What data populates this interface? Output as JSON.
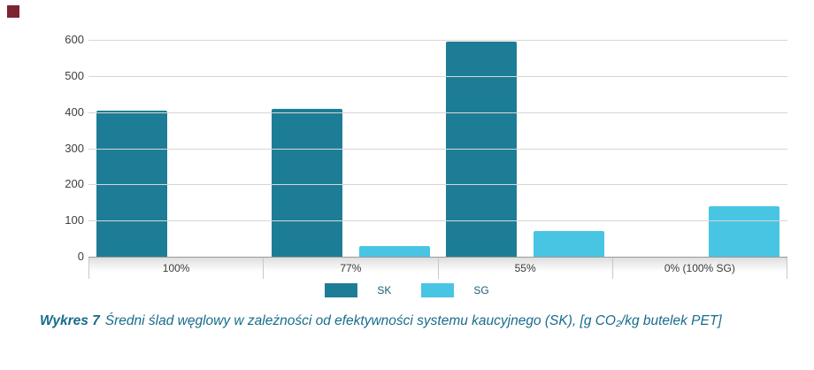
{
  "accent_square_color": "#7d2332",
  "chart_data": {
    "type": "bar",
    "title": "",
    "categories": [
      "100%",
      "77%",
      "55%",
      "0% (100% SG)"
    ],
    "series": [
      {
        "name": "SK",
        "color": "#1e7d96",
        "values": [
          405,
          410,
          595,
          0
        ]
      },
      {
        "name": "SG",
        "color": "#49c5e4",
        "values": [
          0,
          30,
          70,
          140
        ]
      }
    ],
    "xlabel": "",
    "ylabel": "",
    "ylim": [
      0,
      600
    ],
    "ytick_step": 100,
    "grid": true,
    "legend_position": "bottom"
  },
  "caption": {
    "label": "Wykres 7",
    "text": "Średni ślad węglowy w zależności od efektywności systemu kaucyjnego (SK), [g CO₂/kg butelek PET]"
  }
}
